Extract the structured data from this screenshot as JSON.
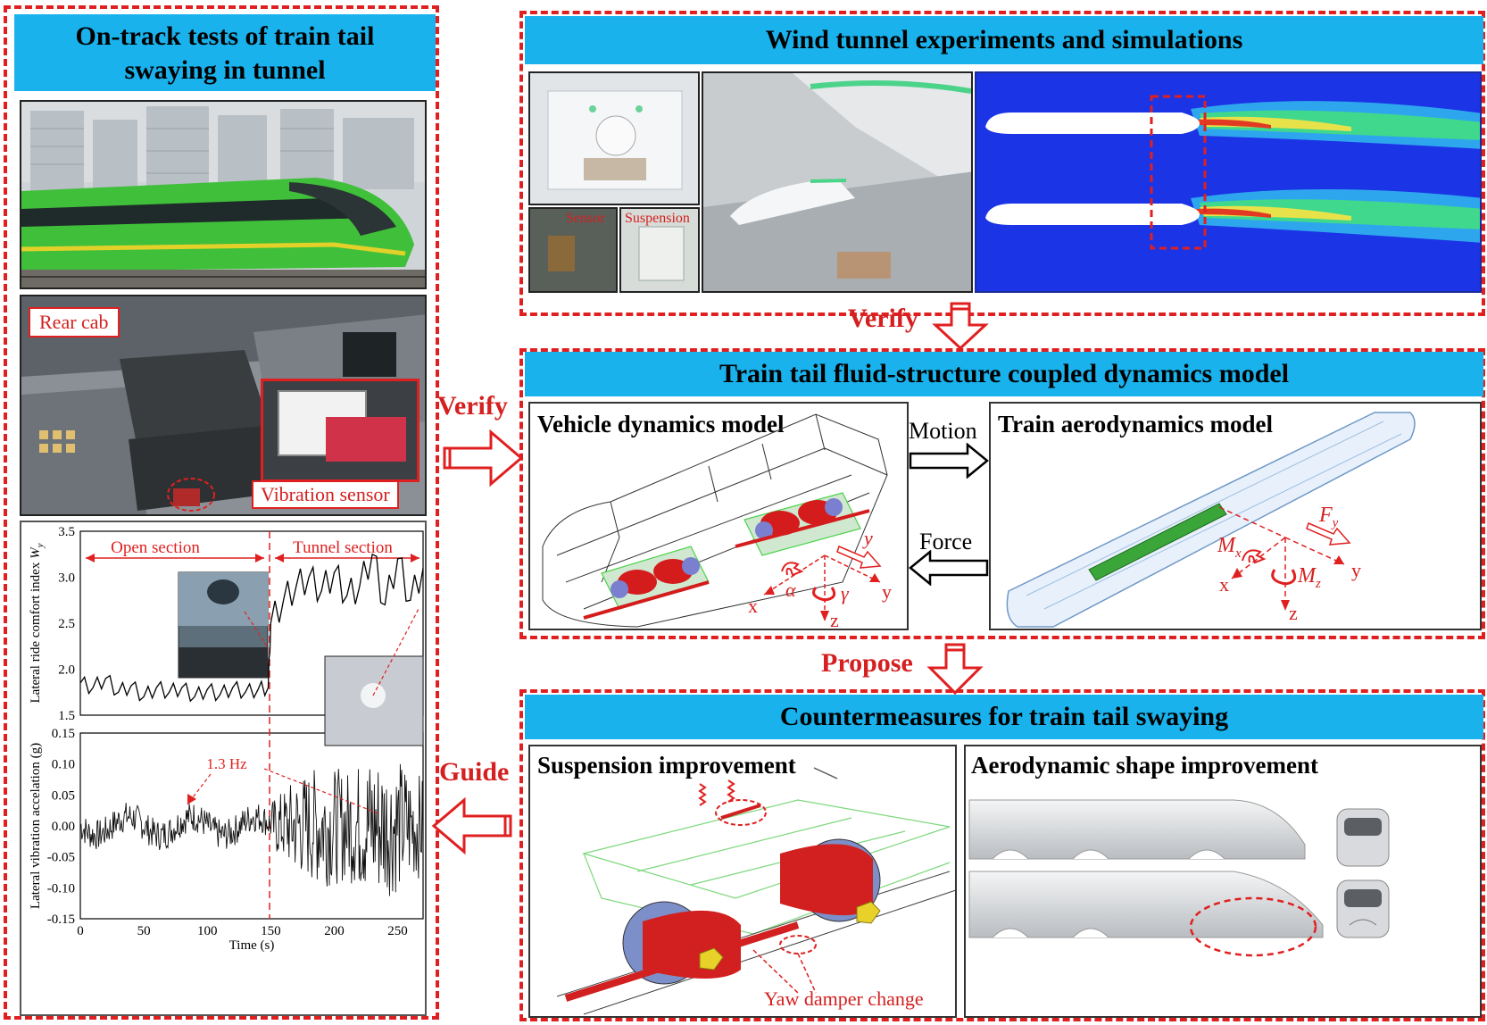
{
  "left": {
    "title_line1": "On-track tests of train tail",
    "title_line2": "swaying in tunnel",
    "cab": {
      "rear_cab": "Rear cab",
      "vibration_sensor": "Vibration sensor"
    },
    "comfort_chart": {
      "ylabel": "Lateral ride comfort index W_y",
      "ylabel_main": "Lateral ride comfort index ",
      "ylabel_sym": "W",
      "ylabel_sub": "y",
      "open_section": "Open section",
      "tunnel_section": "Tunnel section",
      "yticks": [
        "3.5",
        "3.0",
        "2.5",
        "2.0",
        "1.5"
      ]
    },
    "accel_chart": {
      "ylabel": "Lateral vibration accelation (g)",
      "xlabel": "Time (s)",
      "annotation": "1.3 Hz",
      "yticks": [
        "0.15",
        "0.10",
        "0.05",
        "0.00",
        "-0.05",
        "-0.10",
        "-0.15"
      ],
      "xticks": [
        "0",
        "50",
        "100",
        "150",
        "200",
        "250"
      ]
    }
  },
  "wind": {
    "title": "Wind tunnel experiments and simulations",
    "sensor": "Sensor",
    "suspension": "Suspension"
  },
  "flow_arrows": {
    "verify_top": "Verify",
    "verify_left": "Verify",
    "propose": "Propose",
    "guide": "Guide"
  },
  "coupled": {
    "title": "Train tail fluid-structure coupled dynamics model",
    "vehicle_title": "Vehicle dynamics model",
    "aero_title": "Train aerodynamics model",
    "motion": "Motion",
    "force": "Force",
    "vehicle_axes": {
      "x": "x",
      "y": "y",
      "z": "z",
      "alpha": "α",
      "gamma": "γ",
      "y_red": "y"
    },
    "aero_axes": {
      "F": "F",
      "Fsub": "y",
      "M": "M",
      "Mx_sub": "x",
      "Mz_sub": "z",
      "x": "x",
      "y": "y",
      "z": "z"
    }
  },
  "counter": {
    "title": "Countermeasures for train tail swaying",
    "suspension_title": "Suspension improvement",
    "aero_title": "Aerodynamic shape improvement",
    "yaw_damper": "Yaw damper change"
  },
  "chart_data": [
    {
      "type": "line",
      "ylabel": "Lateral ride comfort index W_y",
      "xlim": [
        0,
        270
      ],
      "ylim": [
        1.5,
        3.5
      ],
      "annotations": [
        "Open section",
        "Tunnel section"
      ],
      "x": [
        0,
        10,
        20,
        30,
        40,
        50,
        60,
        70,
        80,
        90,
        100,
        110,
        120,
        130,
        140,
        148,
        150,
        160,
        170,
        180,
        190,
        200,
        210,
        220,
        230,
        240,
        250,
        260,
        270
      ],
      "values": [
        1.85,
        1.8,
        1.9,
        1.75,
        1.82,
        1.7,
        1.8,
        1.75,
        1.8,
        1.7,
        1.78,
        1.72,
        1.8,
        1.75,
        1.78,
        1.8,
        2.5,
        2.75,
        2.9,
        3.0,
        2.85,
        3.05,
        2.8,
        2.9,
        3.25,
        2.7,
        3.2,
        2.75,
        3.1
      ]
    },
    {
      "type": "line",
      "ylabel": "Lateral vibration accelation (g)",
      "xlabel": "Time (s)",
      "xlim": [
        0,
        270
      ],
      "ylim": [
        -0.15,
        0.15
      ],
      "annotations": [
        "1.3 Hz"
      ],
      "x": [
        0,
        20,
        40,
        60,
        70,
        80,
        90,
        100,
        110,
        120,
        140,
        150,
        170,
        190,
        210,
        230,
        250,
        270
      ],
      "values": [
        0.01,
        0.005,
        0.0,
        -0.01,
        -0.02,
        -0.025,
        -0.02,
        -0.03,
        -0.01,
        0.01,
        0.015,
        0.02,
        0.06,
        0.08,
        0.07,
        0.1,
        0.09,
        0.06
      ]
    }
  ]
}
